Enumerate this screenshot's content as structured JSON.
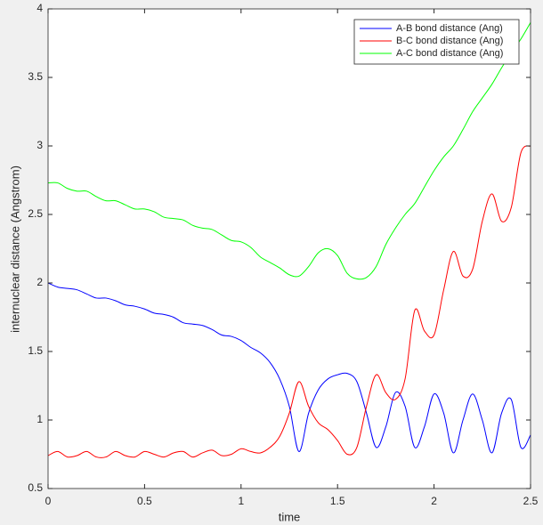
{
  "chart_data": {
    "type": "line",
    "xlabel": "time",
    "ylabel": "internuclear distance (Angstrom)",
    "xlim": [
      0,
      2.5
    ],
    "ylim": [
      0.5,
      4
    ],
    "xticks": [
      0,
      0.5,
      1,
      1.5,
      2,
      2.5
    ],
    "yticks": [
      0.5,
      1,
      1.5,
      2,
      2.5,
      3,
      3.5,
      4
    ],
    "grid": false,
    "legend": "northeast",
    "x": [
      0,
      0.05,
      0.1,
      0.15,
      0.2,
      0.25,
      0.3,
      0.35,
      0.4,
      0.45,
      0.5,
      0.55,
      0.6,
      0.65,
      0.7,
      0.75,
      0.8,
      0.85,
      0.9,
      0.95,
      1,
      1.05,
      1.1,
      1.15,
      1.2,
      1.25,
      1.3,
      1.35,
      1.4,
      1.45,
      1.5,
      1.55,
      1.6,
      1.65,
      1.7,
      1.75,
      1.8,
      1.85,
      1.9,
      1.95,
      2,
      2.05,
      2.1,
      2.15,
      2.2,
      2.25,
      2.3,
      2.35,
      2.4,
      2.45,
      2.5
    ],
    "series": [
      {
        "name": "A-B bond distance (Ang)",
        "color": "#0000ff",
        "values": [
          2.0,
          1.97,
          1.96,
          1.95,
          1.92,
          1.89,
          1.89,
          1.87,
          1.84,
          1.83,
          1.81,
          1.78,
          1.77,
          1.75,
          1.71,
          1.7,
          1.69,
          1.66,
          1.62,
          1.61,
          1.58,
          1.53,
          1.49,
          1.42,
          1.3,
          1.1,
          0.77,
          1.05,
          1.22,
          1.3,
          1.33,
          1.34,
          1.28,
          1.05,
          0.8,
          0.95,
          1.2,
          1.1,
          0.8,
          0.95,
          1.19,
          1.05,
          0.76,
          1.0,
          1.19,
          1.0,
          0.76,
          1.05,
          1.15,
          0.8,
          0.89
        ]
      },
      {
        "name": "B-C bond distance (Ang)",
        "color": "#ff0000",
        "values": [
          0.74,
          0.77,
          0.73,
          0.74,
          0.77,
          0.73,
          0.73,
          0.77,
          0.74,
          0.73,
          0.77,
          0.75,
          0.73,
          0.76,
          0.77,
          0.73,
          0.76,
          0.78,
          0.74,
          0.75,
          0.79,
          0.77,
          0.76,
          0.8,
          0.88,
          1.05,
          1.28,
          1.1,
          0.98,
          0.93,
          0.85,
          0.75,
          0.8,
          1.1,
          1.33,
          1.2,
          1.15,
          1.3,
          1.8,
          1.65,
          1.62,
          1.95,
          2.23,
          2.05,
          2.1,
          2.45,
          2.65,
          2.45,
          2.55,
          2.95,
          3.0
        ]
      },
      {
        "name": "A-C bond distance (Ang)",
        "color": "#00ff00",
        "values": [
          2.73,
          2.73,
          2.69,
          2.67,
          2.67,
          2.63,
          2.6,
          2.6,
          2.57,
          2.54,
          2.54,
          2.52,
          2.48,
          2.47,
          2.46,
          2.42,
          2.4,
          2.39,
          2.35,
          2.31,
          2.3,
          2.26,
          2.19,
          2.15,
          2.11,
          2.06,
          2.05,
          2.12,
          2.22,
          2.25,
          2.2,
          2.07,
          2.03,
          2.04,
          2.12,
          2.28,
          2.4,
          2.5,
          2.58,
          2.7,
          2.82,
          2.92,
          3.0,
          3.12,
          3.25,
          3.35,
          3.45,
          3.57,
          3.68,
          3.78,
          3.9
        ]
      }
    ]
  }
}
